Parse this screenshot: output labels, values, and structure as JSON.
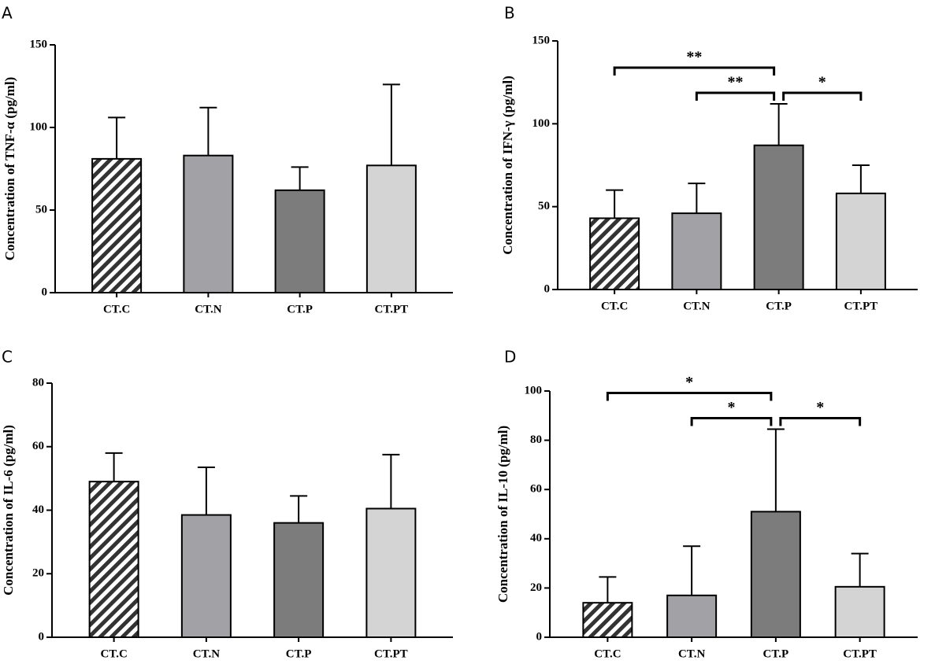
{
  "chart_data": [
    {
      "type": "bar",
      "title": "A",
      "ylabel": "Concentration of TNF-α (pg/ml)",
      "categories": [
        "CT.C",
        "CT.N",
        "CT.P",
        "CT.PT"
      ],
      "values": [
        81,
        83,
        62,
        77
      ],
      "errors": [
        25,
        29,
        14,
        49
      ],
      "colors": [
        "#ffffff",
        "#a2a2a6",
        "#7c7c7c",
        "#d4d4d4"
      ],
      "hatched": [
        true,
        false,
        false,
        false
      ],
      "ylim": [
        0,
        150
      ],
      "yticks": [
        0,
        50,
        100,
        150
      ],
      "annotations": []
    },
    {
      "type": "bar",
      "title": "B",
      "ylabel": "Concentration of IFN-γ (pg/ml)",
      "categories": [
        "CT.C",
        "CT.N",
        "CT.P",
        "CT.PT"
      ],
      "values": [
        43,
        46,
        87,
        58
      ],
      "errors": [
        17,
        18,
        25,
        17
      ],
      "colors": [
        "#ffffff",
        "#a2a2a6",
        "#7c7c7c",
        "#d4d4d4"
      ],
      "hatched": [
        true,
        false,
        false,
        false
      ],
      "ylim": [
        0,
        150
      ],
      "yticks": [
        0,
        50,
        100,
        150
      ],
      "annotations": [
        {
          "text": "**",
          "from": "CT.C",
          "to": "CT.P"
        },
        {
          "text": "**",
          "from": "CT.N",
          "to": "CT.P"
        },
        {
          "text": "*",
          "from": "CT.P",
          "to": "CT.PT"
        }
      ]
    },
    {
      "type": "bar",
      "title": "C",
      "ylabel": "Concentration of IL-6 (pg/ml)",
      "categories": [
        "CT.C",
        "CT.N",
        "CT.P",
        "CT.PT"
      ],
      "values": [
        49,
        38.5,
        36,
        40.5
      ],
      "errors": [
        9,
        15,
        8.5,
        17
      ],
      "colors": [
        "#ffffff",
        "#a2a2a6",
        "#7c7c7c",
        "#d4d4d4"
      ],
      "hatched": [
        true,
        false,
        false,
        false
      ],
      "ylim": [
        0,
        80
      ],
      "yticks": [
        0,
        20,
        40,
        60,
        80
      ],
      "annotations": []
    },
    {
      "type": "bar",
      "title": "D",
      "ylabel": "Concentration of IL-10 (pg/ml)",
      "categories": [
        "CT.C",
        "CT.N",
        "CT.P",
        "CT.PT"
      ],
      "values": [
        14,
        17,
        51,
        20.5
      ],
      "errors": [
        10.5,
        20,
        33.5,
        13.5
      ],
      "colors": [
        "#ffffff",
        "#a2a2a6",
        "#7c7c7c",
        "#d4d4d4"
      ],
      "hatched": [
        true,
        false,
        false,
        false
      ],
      "ylim": [
        0,
        100
      ],
      "yticks": [
        0,
        20,
        40,
        60,
        80,
        100
      ],
      "annotations": [
        {
          "text": "*",
          "from": "CT.C",
          "to": "CT.P"
        },
        {
          "text": "*",
          "from": "CT.N",
          "to": "CT.P"
        },
        {
          "text": "*",
          "from": "CT.P",
          "to": "CT.PT"
        }
      ]
    }
  ]
}
